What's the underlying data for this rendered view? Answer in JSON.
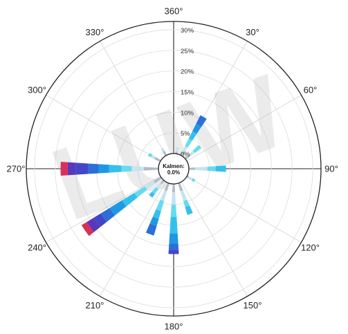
{
  "chart_data": {
    "type": "wind-rose",
    "angle_labels": [
      "360°",
      "30°",
      "60°",
      "90°",
      "120°",
      "150°",
      "180°",
      "210°",
      "240°",
      "270°",
      "300°",
      "330°"
    ],
    "radial_labels": [
      "0%",
      "5%",
      "10%",
      "15%",
      "20%",
      "25%",
      "30%"
    ],
    "radial_ticks": [
      0,
      5,
      10,
      15,
      20,
      25,
      30
    ],
    "rmax": 32,
    "calm_label": "Kalmen:",
    "calm_value": "0.0%",
    "watermark": "LUW",
    "palette": [
      "#b0bac8",
      "#c6e4ef",
      "#66dbee",
      "#35c0ec",
      "#1f98e4",
      "#2c6fd6",
      "#4446c8",
      "#5a38ba",
      "#d8305a"
    ],
    "sectors": [
      {
        "direction": 10,
        "values": [
          0.5,
          1.1
        ]
      },
      {
        "direction": 30,
        "values": [
          1,
          1.5,
          2,
          2,
          2,
          2.3
        ]
      },
      {
        "direction": 50,
        "values": [
          1.2,
          1.5,
          2
        ]
      },
      {
        "direction": 90,
        "values": [
          1.5,
          3,
          2,
          2.5
        ]
      },
      {
        "direction": 120,
        "values": [
          0.5,
          1,
          0.7
        ]
      },
      {
        "direction": 160,
        "values": [
          2,
          2.5,
          1.5,
          2
        ]
      },
      {
        "direction": 180,
        "values": [
          2,
          3,
          3,
          4,
          2.5,
          1.5,
          1
        ]
      },
      {
        "direction": 200,
        "values": [
          2,
          2.5,
          2.5,
          2,
          1.8,
          2.4
        ]
      },
      {
        "direction": 220,
        "values": [
          1,
          1.5,
          1.5,
          1
        ]
      },
      {
        "direction": 235,
        "values": [
          2,
          2.5,
          3,
          3.5,
          3.5,
          2.5,
          2,
          2,
          1.5
        ]
      },
      {
        "direction": 270,
        "values": [
          3.5,
          3,
          2.5,
          3,
          2.5,
          2.5,
          3,
          2,
          1.7
        ]
      },
      {
        "direction": 300,
        "values": [
          1.5,
          1,
          0.8
        ]
      },
      {
        "direction": 330,
        "values": [
          1.2,
          0.8
        ]
      }
    ]
  }
}
